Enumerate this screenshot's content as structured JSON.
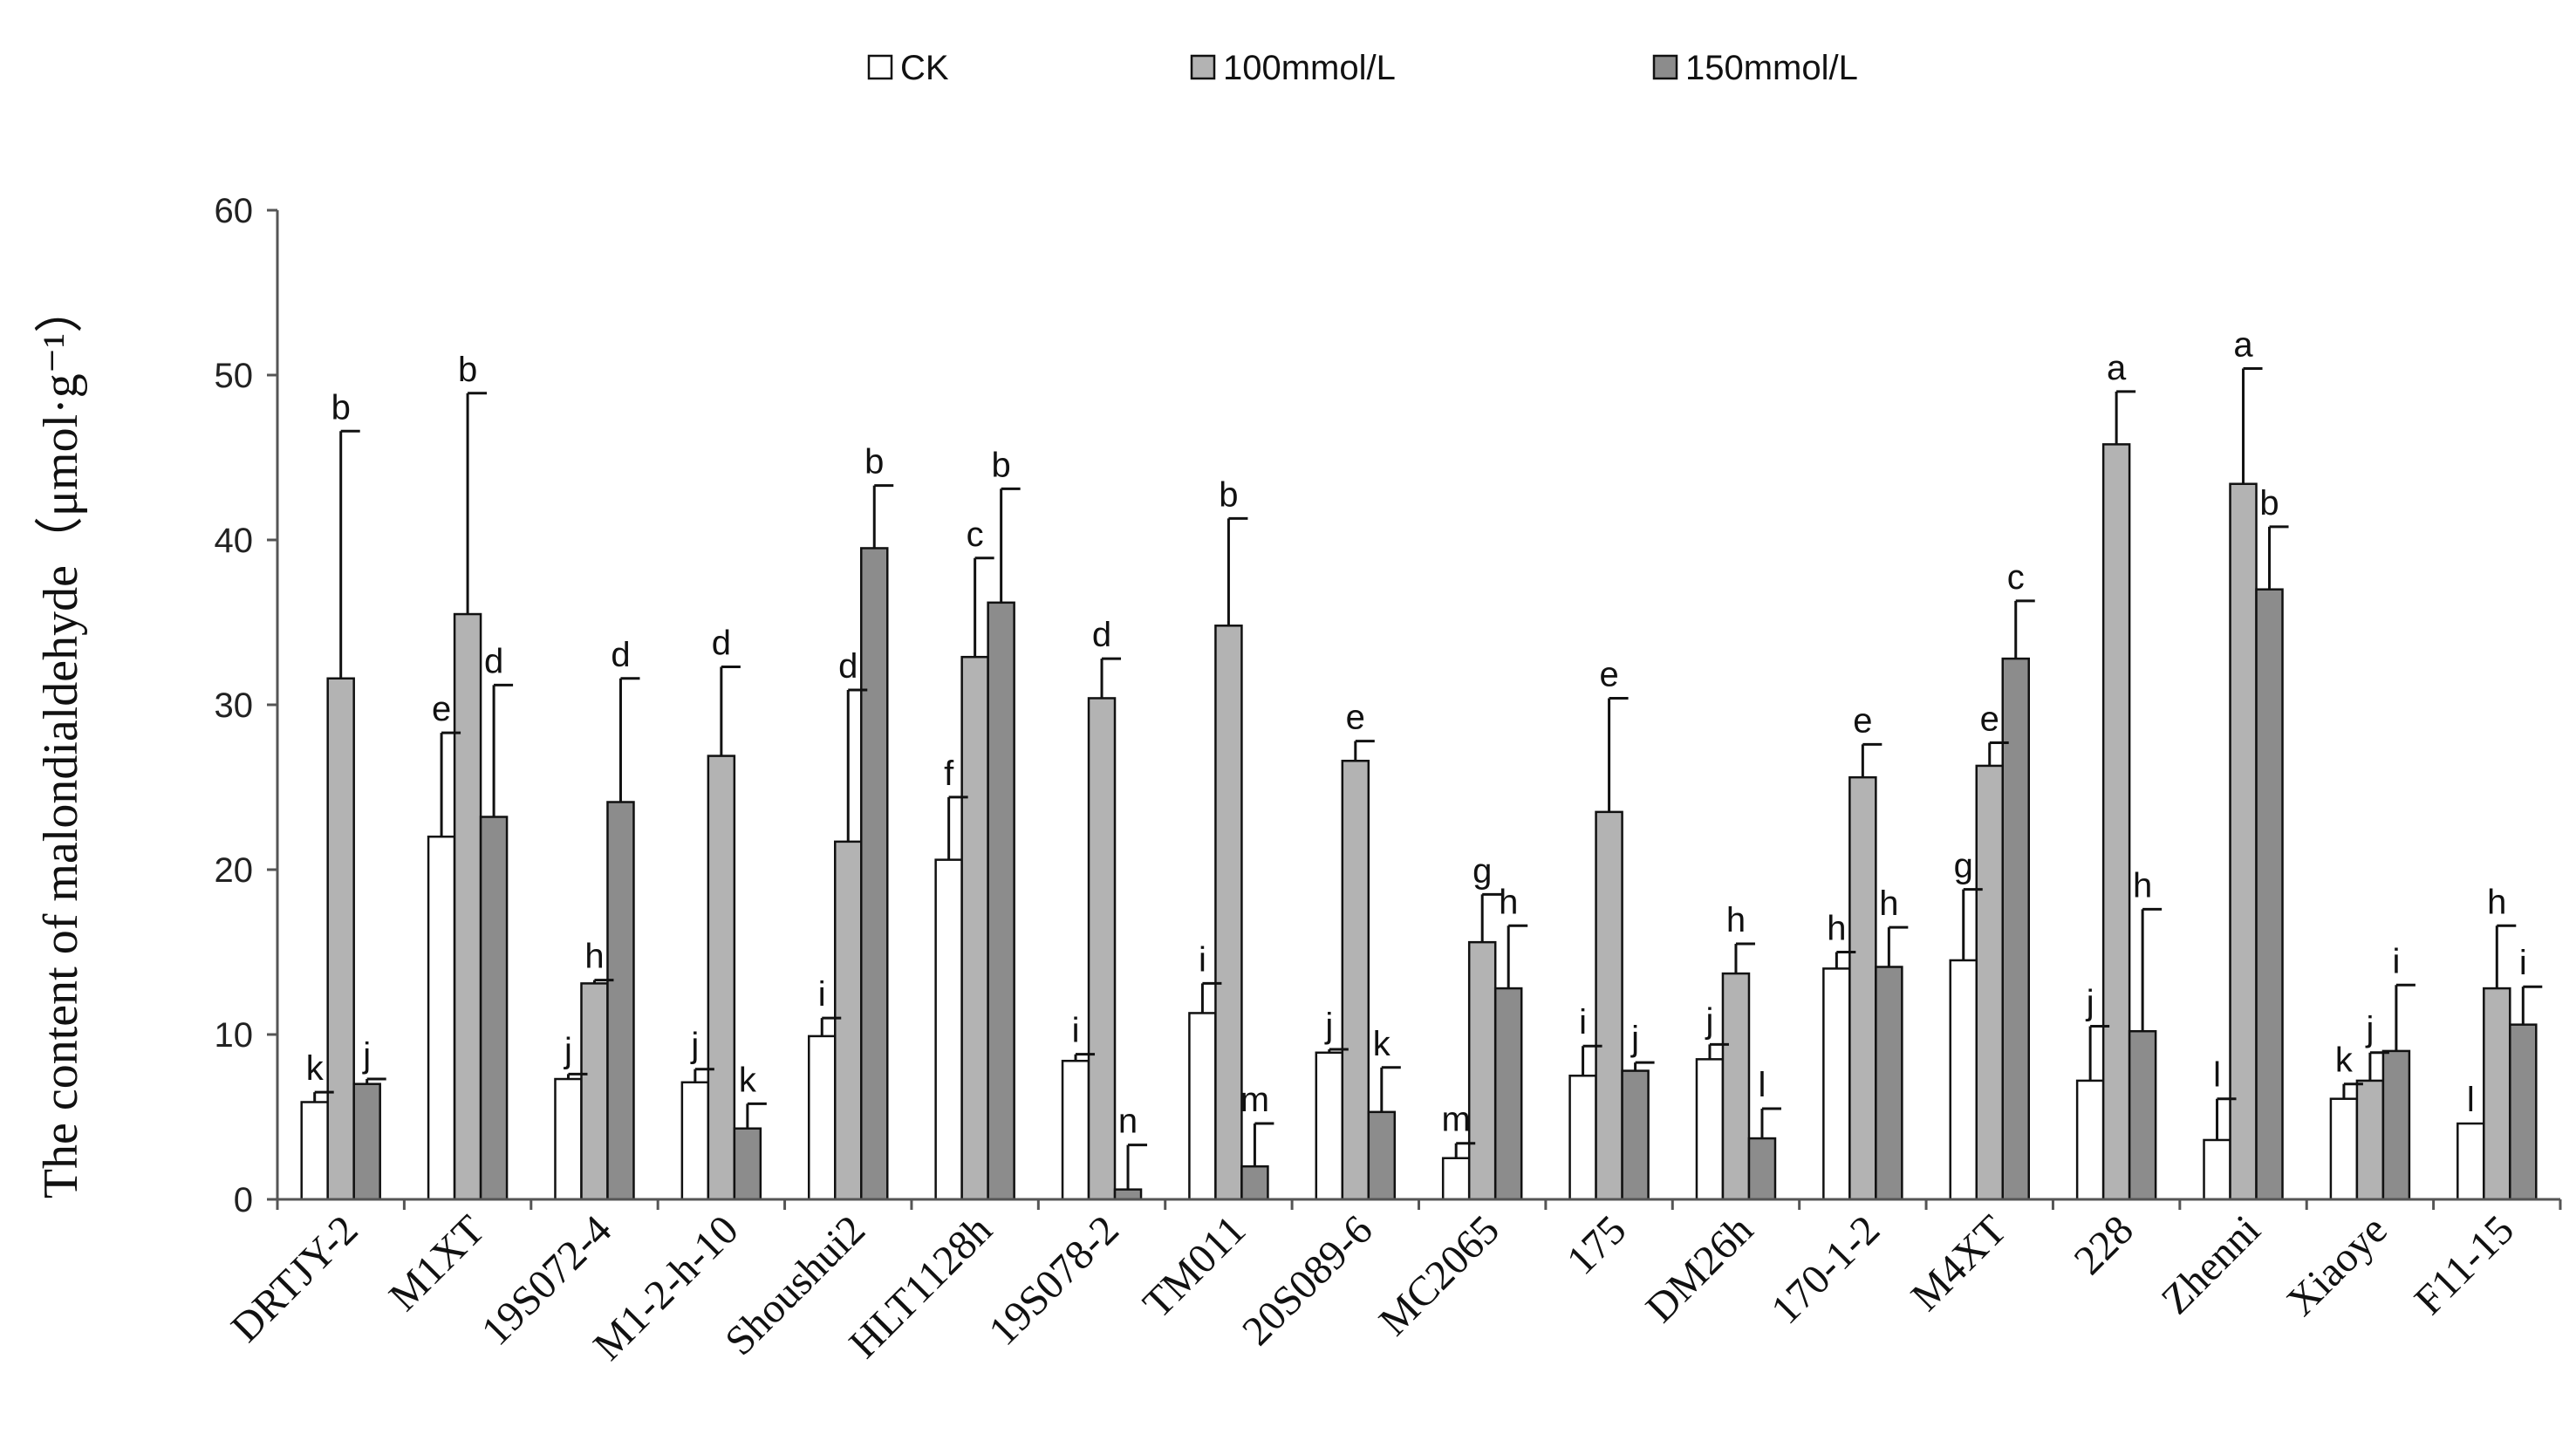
{
  "chart_data": {
    "type": "bar",
    "title": "",
    "xlabel": "",
    "ylabel": "The content of malondialdehyde（μmol·g⁻¹）",
    "ylim": [
      0,
      60
    ],
    "yticks": [
      0,
      10,
      20,
      30,
      40,
      50,
      60
    ],
    "grid": false,
    "legend_position": "top",
    "categories": [
      "DRTJY-2",
      "M1XT",
      "19S072-4",
      "M1-2-h-10",
      "Shoushui2",
      "HLT1128h",
      "19S078-2",
      "TM011",
      "20S089-6",
      "MC2065",
      "175",
      "DM26h",
      "170-1-2",
      "M4XT",
      "228",
      "Zhenni",
      "Xiaoye",
      "F11-15"
    ],
    "series": [
      {
        "name": "CK",
        "color": "#ffffff",
        "values": [
          5.9,
          22.0,
          7.3,
          7.1,
          9.9,
          20.6,
          8.4,
          11.3,
          8.9,
          2.5,
          7.5,
          8.5,
          14.0,
          14.5,
          7.2,
          3.6,
          6.1,
          4.6
        ],
        "errors": [
          0.6,
          6.3,
          0.3,
          0.8,
          1.1,
          3.8,
          0.4,
          1.8,
          0.2,
          0.9,
          1.8,
          0.9,
          1.0,
          4.3,
          3.3,
          2.5,
          0.9,
          0.0
        ],
        "letters": [
          "k",
          "e",
          "j",
          "j",
          "i",
          "f",
          "i",
          "i",
          "j",
          "m",
          "i",
          "j",
          "h",
          "g",
          "j",
          "l",
          "k",
          "l"
        ]
      },
      {
        "name": "100mmol/L",
        "color": "#b3b3b3",
        "values": [
          31.6,
          35.5,
          13.1,
          26.9,
          21.7,
          32.9,
          30.4,
          34.8,
          26.6,
          15.6,
          23.5,
          13.7,
          25.6,
          26.3,
          45.8,
          43.4,
          7.2,
          12.8
        ],
        "errors": [
          15.0,
          13.4,
          0.2,
          5.4,
          9.2,
          6.0,
          2.4,
          6.5,
          1.2,
          2.9,
          6.9,
          1.8,
          2.0,
          1.4,
          3.2,
          7.0,
          1.7,
          3.8
        ],
        "letters": [
          "b",
          "b",
          "h",
          "d",
          "d",
          "c",
          "d",
          "b",
          "e",
          "g",
          "e",
          "h",
          "e",
          "e",
          "a",
          "a",
          "j",
          "h"
        ]
      },
      {
        "name": "150mmol/L",
        "color": "#8c8c8c",
        "values": [
          7.0,
          23.2,
          24.1,
          4.3,
          39.5,
          36.2,
          0.6,
          2.0,
          5.3,
          12.8,
          7.8,
          3.7,
          14.1,
          32.8,
          10.2,
          37.0,
          9.0,
          10.6
        ],
        "errors": [
          0.3,
          8.0,
          7.5,
          1.5,
          3.8,
          6.9,
          2.7,
          2.6,
          2.7,
          3.8,
          0.5,
          1.8,
          2.4,
          3.5,
          7.4,
          3.8,
          4.0,
          2.3
        ],
        "letters": [
          "j",
          "d",
          "d",
          "k",
          "b",
          "b",
          "n",
          "m",
          "k",
          "h",
          "j",
          "l",
          "h",
          "c",
          "h",
          "b",
          "i",
          "i"
        ]
      }
    ]
  }
}
